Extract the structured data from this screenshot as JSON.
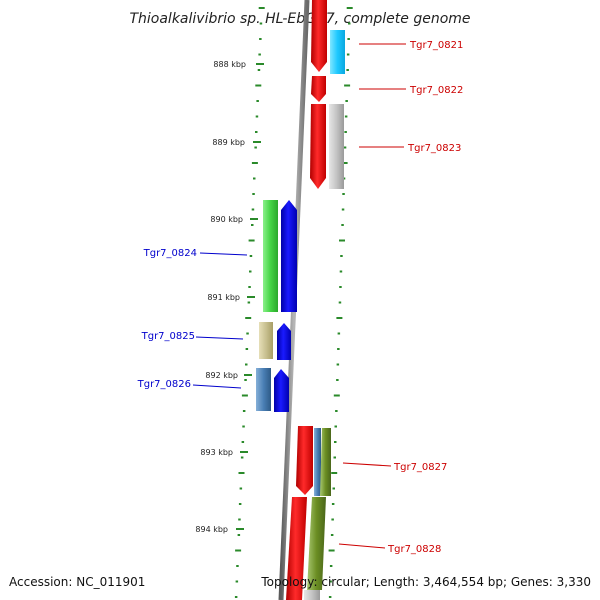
{
  "title": "Thioalkalivibrio sp. HL-EbGR7, complete genome",
  "footer": {
    "accession": "Accession: NC_011901",
    "summary": "Topology: circular; Length: 3,464,554 bp; Genes: 3,330"
  },
  "scale_ticks": [
    "888 kbp",
    "889 kbp",
    "890 kbp",
    "891 kbp",
    "892 kbp",
    "893 kbp",
    "894 kbp"
  ],
  "colors": {
    "forward_label": "#cc0000",
    "reverse_label": "#0000cc",
    "tick": "#2a8a2a",
    "backbone": "#8a8a8a"
  },
  "genes": [
    {
      "label": "Tgr7_0821",
      "strand": "forward",
      "color": "#ff0000",
      "partner_color": "#1ec8ff"
    },
    {
      "label": "Tgr7_0822",
      "strand": "forward",
      "color": "#ff0000",
      "partner_color": ""
    },
    {
      "label": "Tgr7_0823",
      "strand": "forward",
      "color": "#ff0000",
      "partner_color": "#c0c0c0"
    },
    {
      "label": "Tgr7_0824",
      "strand": "reverse",
      "color": "#0000ff",
      "partner_color": "#44d444"
    },
    {
      "label": "Tgr7_0825",
      "strand": "reverse",
      "color": "#0000ff",
      "partner_color": "#c8c090"
    },
    {
      "label": "Tgr7_0826",
      "strand": "reverse",
      "color": "#0000ff",
      "partner_color": "#4a7fb5"
    },
    {
      "label": "Tgr7_0827",
      "strand": "forward",
      "color": "#ff0000",
      "partner_color": "#6b8e23"
    },
    {
      "label": "Tgr7_0828",
      "strand": "forward",
      "color": "#ff0000",
      "partner_color": "#6b8e23"
    }
  ]
}
